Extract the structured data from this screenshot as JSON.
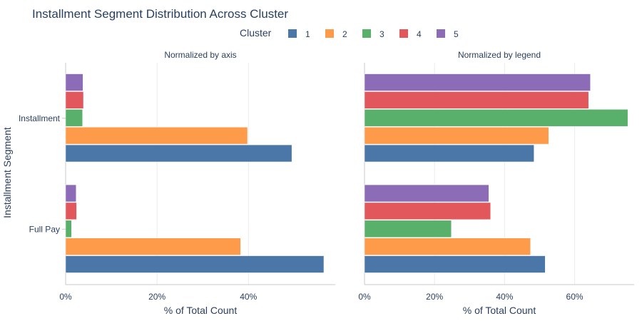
{
  "chart_data": {
    "type": "bar",
    "orientation": "horizontal",
    "title": "Installment Segment Distribution Across Cluster",
    "legend_title": "Cluster",
    "legend_position": "top-center",
    "ylabel": "Installment Segment",
    "categories": [
      "Installment",
      "Full Pay"
    ],
    "series_colors": {
      "1": "#4a76a8",
      "2": "#fd9b4b",
      "3": "#58b06b",
      "4": "#e1575b",
      "5": "#8c6bb7"
    },
    "panels": [
      {
        "subtitle": "Normalized by axis",
        "xlabel": "% of Total Count",
        "xlim": [
          0,
          59
        ],
        "xticks": [
          0,
          20,
          40
        ],
        "xtick_labels": [
          "0%",
          "20%",
          "40%"
        ],
        "series": [
          {
            "name": "1",
            "values": [
              49.5,
              56.5
            ]
          },
          {
            "name": "2",
            "values": [
              39.8,
              38.3
            ]
          },
          {
            "name": "3",
            "values": [
              3.7,
              1.3
            ]
          },
          {
            "name": "4",
            "values": [
              3.9,
              2.4
            ]
          },
          {
            "name": "5",
            "values": [
              3.8,
              2.3
            ]
          }
        ]
      },
      {
        "subtitle": "Normalized by legend",
        "xlabel": "% of Total Count",
        "xlim": [
          0,
          77
        ],
        "xticks": [
          0,
          20,
          40,
          60
        ],
        "xtick_labels": [
          "0%",
          "20%",
          "40%",
          "60%"
        ],
        "series": [
          {
            "name": "1",
            "values": [
              48.4,
              51.6
            ]
          },
          {
            "name": "2",
            "values": [
              52.6,
              47.4
            ]
          },
          {
            "name": "3",
            "values": [
              75.2,
              24.8
            ]
          },
          {
            "name": "4",
            "values": [
              64.0,
              36.0
            ]
          },
          {
            "name": "5",
            "values": [
              64.5,
              35.5
            ]
          }
        ]
      }
    ]
  }
}
